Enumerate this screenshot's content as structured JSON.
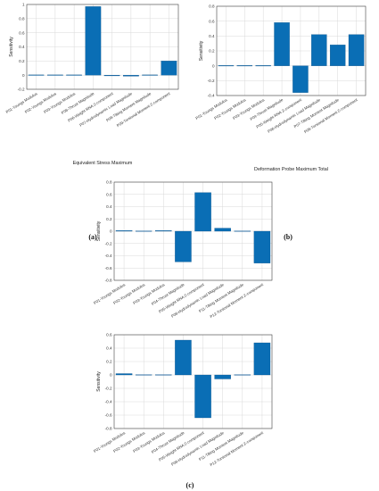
{
  "colors": {
    "bar": "#0a6eb5",
    "bar_stroke": "#0a4f86",
    "grid": "#d9d9d9",
    "axis": "#444444"
  },
  "panels": {
    "a": "(a)",
    "b": "(b)",
    "c": "(c)"
  },
  "chart_data": [
    {
      "type": "bar",
      "title": "",
      "xlabel": "Equivalent Stress Maximum",
      "ylabel": "Sensitivity",
      "ylim": [
        -0.2,
        1
      ],
      "yticks": [
        -0.2,
        0,
        0.2,
        0.4,
        0.6,
        0.8,
        1
      ],
      "ytick_labels": [
        "-0.2",
        "0",
        "0.2",
        "0.4",
        "0.6",
        "0.8",
        "1"
      ],
      "grid": true,
      "categories": [
        "P01-Youngs Modulus",
        "P02-Youngs Modulus",
        "P03-Youngs Modulus",
        "P06-Thrust Magnitude",
        "P06-Weight RNA Z-component",
        "P07-Hydrodynamic Load Magnitude",
        "P08-Tilting Moment Magnitude",
        "P09-Torsional Moment Z-component"
      ],
      "values": [
        0.0,
        0.0,
        0.0,
        0.97,
        -0.01,
        -0.015,
        0.0,
        0.2
      ]
    },
    {
      "type": "bar",
      "title": "",
      "xlabel": "Deformation Probe Maximum Total",
      "ylabel": "Sensitivity",
      "ylim": [
        -0.4,
        0.8
      ],
      "yticks": [
        -0.4,
        -0.2,
        0,
        0.2,
        0.4,
        0.6,
        0.8
      ],
      "ytick_labels": [
        "-0.4",
        "-0.2",
        "0",
        "0.2",
        "0.4",
        "0.6",
        "0.8"
      ],
      "grid": true,
      "categories": [
        "P01-Youngs Modulus",
        "P02-Youngs Modulus",
        "P03-Youngs Modulus",
        "P04-Thrust Magnitude",
        "P05-Weight RNA Z-component",
        "P06-Hydrodynamic Load Magnitude",
        "P07-Tilting Moment Magnitude",
        "P08-Torsional Moment Z-component"
      ],
      "values": [
        0.0,
        0.0,
        0.0,
        0.58,
        -0.36,
        0.42,
        0.28,
        0.42
      ]
    },
    {
      "type": "bar",
      "title": "",
      "xlabel": "Safety factor minimum",
      "ylabel": "Sensitivity",
      "ylim": [
        -0.8,
        0.8
      ],
      "yticks": [
        -0.8,
        -0.6,
        -0.4,
        -0.2,
        0,
        0.2,
        0.4,
        0.6,
        0.8
      ],
      "ytick_labels": [
        "-0.8",
        "-0.6",
        "-0.4",
        "-0.2",
        "0",
        "0.2",
        "0.4",
        "0.6",
        "0.8"
      ],
      "grid": true,
      "categories": [
        "P01-Youngs Modulus",
        "P02-Youngs Modulus",
        "P03-Youngs Modulus",
        "P04-Thrust Magnitude",
        "P05-Weight RNA Z-component",
        "P06-Hydrodynamic Load Magnitude",
        "P11-Tilting Moment Magnitude",
        "P12-Torsional Moment Z-component"
      ],
      "values": [
        0.01,
        0.0,
        0.01,
        -0.5,
        0.63,
        0.05,
        0.0,
        -0.52
      ]
    },
    {
      "type": "bar",
      "title": "",
      "xlabel": "Equivalent Alternating Stress Maximum",
      "ylabel": "Sensitivity",
      "ylim": [
        -0.8,
        0.6
      ],
      "yticks": [
        -0.8,
        -0.6,
        -0.4,
        -0.2,
        0,
        0.2,
        0.4,
        0.6
      ],
      "ytick_labels": [
        "-0.8",
        "-0.6",
        "-0.4",
        "-0.2",
        "0",
        "0.2",
        "0.4",
        "0.6"
      ],
      "grid": true,
      "categories": [
        "P01-Youngs Modulus",
        "P02-Youngs Modulus",
        "P03-Youngs Modulus",
        "P04-Thrust Magnitude",
        "P05-Weight RNA Z-component",
        "P06-Hydrodynamic Load Magnitude",
        "P11-Tilting Moment Magnitude",
        "P12-Torsional Moment Z-component"
      ],
      "values": [
        0.02,
        0.0,
        0.0,
        0.52,
        -0.64,
        -0.06,
        0.0,
        0.48
      ]
    }
  ]
}
